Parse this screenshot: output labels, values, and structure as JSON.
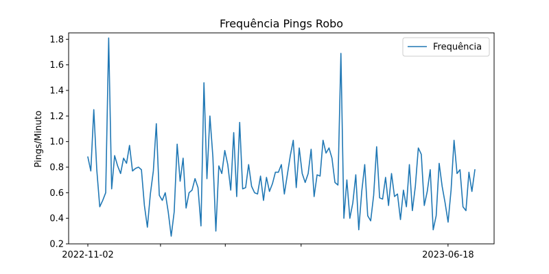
{
  "chart_data": {
    "type": "line",
    "title": "Frequência Pings Robo",
    "xlabel": "",
    "ylabel": "Pings/Minuto",
    "ylim": [
      0.2,
      1.85
    ],
    "yticks": [
      0.2,
      0.4,
      0.6,
      0.8,
      1.0,
      1.2,
      1.4,
      1.6,
      1.8
    ],
    "ytick_labels": [
      "0.2",
      "0.4",
      "0.6",
      "0.8",
      "1.0",
      "1.2",
      "1.4",
      "1.6",
      "1.8"
    ],
    "x_start": "2022-11-02",
    "x_end": "2023-07-05",
    "xticks": [
      {
        "date": "2022-11-02",
        "label": "2022-11-02"
      },
      {
        "date": "2022-12-18",
        "label": ""
      },
      {
        "date": "2023-01-28",
        "label": ""
      },
      {
        "date": "2023-03-17",
        "label": ""
      },
      {
        "date": "2023-06-18",
        "label": "2023-06-18"
      }
    ],
    "grid": false,
    "legend_position": "top-right",
    "series": [
      {
        "name": "Frequência",
        "color": "#1f77b4",
        "values": [
          0.88,
          0.77,
          1.25,
          0.78,
          0.49,
          0.54,
          0.6,
          1.81,
          0.63,
          0.89,
          0.81,
          0.75,
          0.87,
          0.83,
          0.97,
          0.77,
          0.79,
          0.8,
          0.78,
          0.5,
          0.33,
          0.59,
          0.77,
          1.14,
          0.58,
          0.54,
          0.6,
          0.45,
          0.26,
          0.45,
          0.98,
          0.69,
          0.87,
          0.48,
          0.6,
          0.62,
          0.71,
          0.64,
          0.34,
          1.46,
          0.71,
          1.2,
          0.88,
          0.3,
          0.81,
          0.75,
          0.93,
          0.82,
          0.62,
          1.07,
          0.57,
          1.15,
          0.63,
          0.64,
          0.82,
          0.65,
          0.6,
          0.59,
          0.73,
          0.54,
          0.72,
          0.61,
          0.67,
          0.76,
          0.76,
          0.82,
          0.59,
          0.74,
          0.89,
          1.01,
          0.64,
          0.95,
          0.75,
          0.68,
          0.75,
          0.94,
          0.57,
          0.74,
          0.73,
          1.01,
          0.91,
          0.95,
          0.87,
          0.68,
          0.66,
          1.69,
          0.4,
          0.7,
          0.4,
          0.52,
          0.74,
          0.31,
          0.61,
          0.82,
          0.42,
          0.38,
          0.58,
          0.96,
          0.56,
          0.55,
          0.72,
          0.5,
          0.75,
          0.57,
          0.59,
          0.39,
          0.62,
          0.49,
          0.82,
          0.46,
          0.65,
          0.95,
          0.9,
          0.5,
          0.61,
          0.78,
          0.31,
          0.42,
          0.83,
          0.65,
          0.52,
          0.37,
          0.62,
          1.01,
          0.75,
          0.78,
          0.49,
          0.46,
          0.76,
          0.61,
          0.78
        ]
      }
    ]
  }
}
